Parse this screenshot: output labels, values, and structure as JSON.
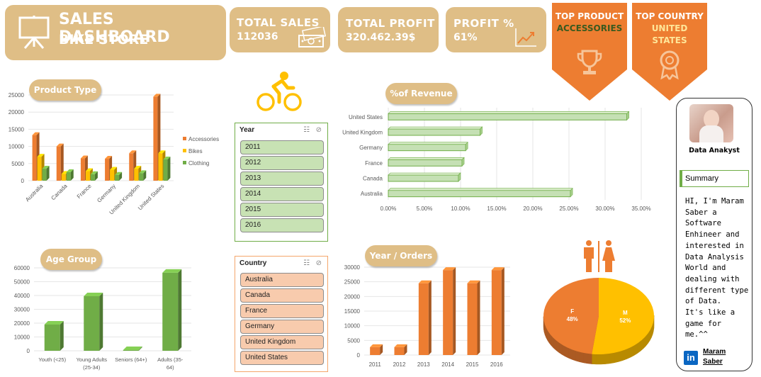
{
  "header": {
    "title": "SALES DASHBOARD",
    "subtitle": "BIKE STORE",
    "icon": "presentation-board-icon"
  },
  "kpis": {
    "total_sales_label": "TOTAL SALES",
    "total_sales_value": "112036",
    "total_sales_icon": "money-icon",
    "total_profit_label": "TOTAL PROFIT",
    "total_profit_value": "320.462.39$",
    "profit_pct_label": "PROFIT %",
    "profit_pct_value": "61%",
    "profit_pct_icon": "growth-chart-icon"
  },
  "top_product": {
    "label": "TOP PRODUCT",
    "value": "ACCESSORIES",
    "icon": "trophy-icon",
    "color": "#ed7d31",
    "value_color": "#3a5a1f"
  },
  "top_country": {
    "label": "TOP COUNTRY",
    "value_line1": "UNITED",
    "value_line2": "STATES",
    "icon": "award-icon",
    "color": "#ed7d31",
    "value_color": "#ffe699"
  },
  "colors": {
    "orange": "#ed7d31",
    "yellow": "#ffc000",
    "green": "#70ad47",
    "tan": "#dfbe86"
  },
  "year_slicer": {
    "title": "Year",
    "items": [
      "2011",
      "2012",
      "2013",
      "2014",
      "2015",
      "2016"
    ]
  },
  "country_slicer": {
    "title": "Country",
    "items": [
      "Australia",
      "Canada",
      "France",
      "Germany",
      "United Kingdom",
      "United States"
    ]
  },
  "cyclist_icon": "cyclist-icon",
  "gender_icon": "male-female-icon",
  "profile": {
    "name": "Data Anakyst",
    "summary_label": "Summary",
    "summary_lines": [
      "HI, I'm Maram",
      "Saber a",
      "Software",
      "Enhineer and",
      "interested in",
      "Data Analysis",
      "World and",
      "dealing with",
      "different type",
      "of Data.",
      "It's like a",
      "game for",
      "me.^^"
    ],
    "linkedin_line1": "Maram",
    "linkedin_line2": "Saber"
  },
  "chart_data": [
    {
      "type": "bar",
      "title": "Product Type",
      "categories": [
        "Australia",
        "Canada",
        "France",
        "Germany",
        "United Kingdom",
        "United States"
      ],
      "series": [
        {
          "name": "Accessories",
          "values": [
            13300,
            10000,
            6500,
            6400,
            8000,
            24500
          ]
        },
        {
          "name": "Bikes",
          "values": [
            7000,
            2000,
            2800,
            3200,
            3500,
            8000
          ]
        },
        {
          "name": "Clothing",
          "values": [
            3500,
            2500,
            1900,
            1700,
            2200,
            6200
          ]
        }
      ],
      "y_ticks": [
        0,
        5000,
        10000,
        15000,
        20000,
        25000
      ],
      "ylim": [
        0,
        25000
      ],
      "legend": "right"
    },
    {
      "type": "bar",
      "title": "Age Group",
      "categories": [
        "Youth (<25)",
        "Young Adults (25-34)",
        "Seniors (64+)",
        "Adults (35-64)"
      ],
      "category_lines": [
        [
          "Youth (<25)"
        ],
        [
          "Young Adults",
          "(25-34)"
        ],
        [
          "Seniors (64+)"
        ],
        [
          "Adults (35-",
          "64)"
        ]
      ],
      "values": [
        19000,
        39500,
        500,
        56500
      ],
      "y_ticks": [
        0,
        10000,
        20000,
        30000,
        40000,
        50000,
        60000
      ],
      "ylim": [
        0,
        60000
      ]
    },
    {
      "type": "bar",
      "orientation": "horizontal",
      "title": "%of Revenue",
      "categories": [
        "United States",
        "United Kingdom",
        "Germany",
        "France",
        "Canada",
        "Australia"
      ],
      "values": [
        33.0,
        12.7,
        10.7,
        10.2,
        9.7,
        25.2
      ],
      "x_ticks": [
        "0.00%",
        "5.00%",
        "10.00%",
        "15.00%",
        "20.00%",
        "25.00%",
        "30.00%",
        "35.00%"
      ],
      "xlim": [
        0,
        35
      ]
    },
    {
      "type": "bar",
      "title": "Year / Orders",
      "categories": [
        "2011",
        "2012",
        "2013",
        "2014",
        "2015",
        "2016"
      ],
      "values": [
        2700,
        2700,
        24500,
        29000,
        24500,
        29000
      ],
      "y_ticks": [
        0,
        5000,
        10000,
        15000,
        20000,
        25000,
        30000
      ],
      "ylim": [
        0,
        30000
      ]
    },
    {
      "type": "pie",
      "slices": [
        {
          "label": "M",
          "pct_label": "52%",
          "value": 52,
          "color": "#ffc000"
        },
        {
          "label": "F",
          "pct_label": "48%",
          "value": 48,
          "color": "#ed7d31"
        }
      ]
    }
  ]
}
